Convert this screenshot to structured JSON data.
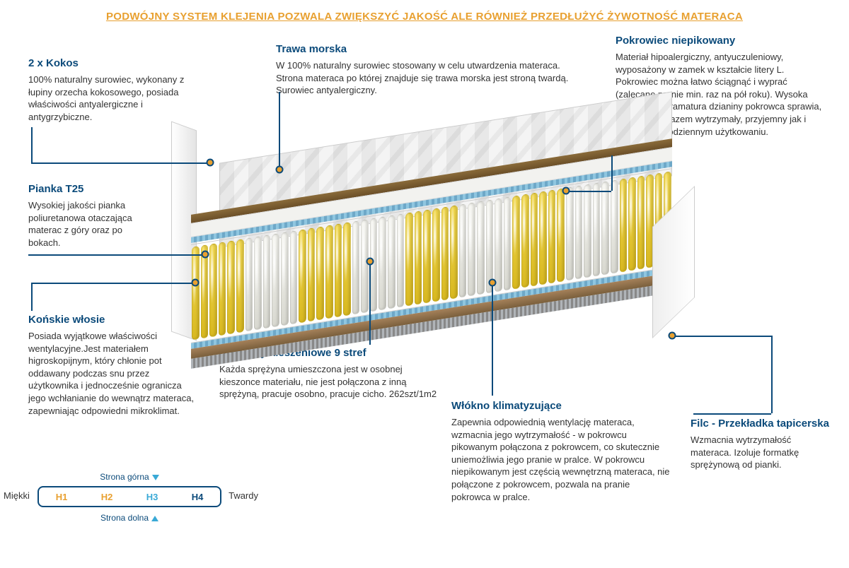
{
  "header": "PODWÓJNY SYSTEM KLEJENIA POZWALA ZWIĘKSZYĆ JAKOŚĆ ALE RÓWNIEŻ PRZEDŁUŻYĆ ŻYWOTNOŚĆ MATERACA",
  "colors": {
    "accent": "#0b4a7a",
    "highlight": "#e8a030",
    "h1": "#e8a030",
    "h2": "#e8a030",
    "h3": "#39a9d6",
    "h4": "#0b4a7a"
  },
  "callouts": {
    "kokos": {
      "title": "2 x Kokos",
      "body": "100% naturalny surowiec, wykonany z łupiny orzecha kokosowego, posiada właściwości antyalergiczne i antygrzybiczne."
    },
    "trawa": {
      "title": "Trawa morska",
      "body": "W 100% naturalny surowiec stosowany w celu utwardzenia materaca. Strona materaca po której znajduje się trawa morska jest stroną twardą. Surowiec antyalergiczny."
    },
    "pokrowiec": {
      "title": "Pokrowiec  niepikowany",
      "body": "Materiał hipoalergiczny, antyuczuleniowy, wyposażony w zamek w kształcie litery L. Pokrowiec można łatwo ściągnąć i wyprać (zalecane pranie min.  raz na pół roku). Wysoka jakość oraz gramatura dzianiny pokrowca sprawia, że jest on zarazem wytrzymały, przyjemny jak i delikatny w codziennym użytkowaniu."
    },
    "pianka": {
      "title": "Pianka T25",
      "body": "Wysokiej jakości pianka poliuretanowa otaczająca materac z góry oraz po bokach."
    },
    "konskie": {
      "title": "Końskie włosie",
      "body": "Posiada wyjątkowe właściwości wentylacyjne.Jest materiałem higroskopijnym, który chłonie pot oddawany podczas snu przez użytkownika i jednocześnie ogranicza jego wchłanianie do wewnątrz materaca, zapewniając odpowiedni mikroklimat."
    },
    "sprezyny": {
      "title": "Sprężyny kieszeniowe 9 stref",
      "body": "Każda sprężyna umieszczona jest w osobnej kieszonce materiału, nie jest połączona z inną sprężyną, pracuje osobno, pracuje cicho. 262szt/1m2"
    },
    "wlokno": {
      "title": "Włókno klimatyzujące",
      "body": "Zapewnia odpowiednią wentylację materaca, wzmacnia jego wytrzymałość - w pokrowcu pikowanym połączona z pokrowcem, co skutecznie uniemożliwia jego pranie w pralce. W pokrowcu niepikowanym jest częścią wewnętrzną materaca, nie połączone z pokrowcem, pozwala na pranie pokrowca w pralce."
    },
    "filc": {
      "title": "Filc - Przekładka tapicerska",
      "body": "Wzmacnia wytrzymałość materaca. Izoluje formatkę sprężynową od pianki."
    }
  },
  "firmness": {
    "label_left": "Miękki",
    "label_right": "Twardy",
    "top_label": "Strona górna",
    "bottom_label": "Strona dolna",
    "levels": [
      {
        "label": "H1",
        "color": "#e8a030"
      },
      {
        "label": "H2",
        "color": "#e8a030"
      },
      {
        "label": "H3",
        "color": "#39a9d6"
      },
      {
        "label": "H4",
        "color": "#0b4a7a"
      }
    ]
  },
  "mattress": {
    "zones": 9,
    "springs_per_zone": 6,
    "zone_colors": [
      "yellow",
      "white",
      "yellow",
      "white",
      "yellow",
      "white",
      "yellow",
      "white",
      "yellow"
    ]
  }
}
